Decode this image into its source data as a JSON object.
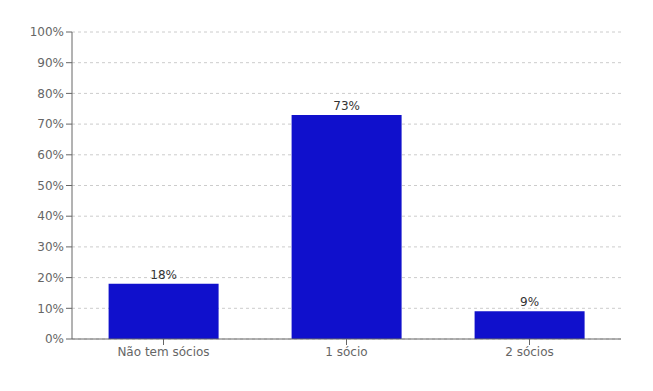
{
  "chart_data": {
    "type": "bar",
    "categories": [
      "Não tem sócios",
      "1 sócio",
      "2 sócios"
    ],
    "values": [
      0.18,
      0.73,
      0.09
    ],
    "value_labels": [
      "18%",
      "73%",
      "9%"
    ],
    "data_labels": true,
    "color": "#1010cc",
    "ylim": [
      0,
      1.0
    ],
    "yticks": [
      {
        "value": 0.0,
        "label": "0%"
      },
      {
        "value": 0.1,
        "label": "10%"
      },
      {
        "value": 0.2,
        "label": "20%"
      },
      {
        "value": 0.3,
        "label": "30%"
      },
      {
        "value": 0.4,
        "label": "40%"
      },
      {
        "value": 0.5,
        "label": "50%"
      },
      {
        "value": 0.6,
        "label": "60%"
      },
      {
        "value": 0.7,
        "label": "70%"
      },
      {
        "value": 0.8,
        "label": "80%"
      },
      {
        "value": 0.9,
        "label": "90%"
      },
      {
        "value": 1.0,
        "label": "100%"
      }
    ],
    "grid": true
  }
}
